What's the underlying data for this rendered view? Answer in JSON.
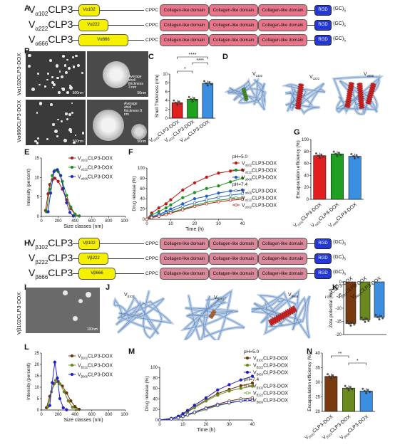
{
  "panels": {
    "A": "A",
    "B": "B",
    "C": "C",
    "D": "D",
    "E": "E",
    "F": "F",
    "G": "G",
    "H": "H",
    "I": "I",
    "J": "J",
    "K": "K",
    "L": "L",
    "M": "M",
    "N": "N"
  },
  "constructs_A": [
    {
      "prefix": "V",
      "sub": "α102",
      "suffix": "CLP3",
      "vlabel": "Vα102"
    },
    {
      "prefix": "V",
      "sub": "α222",
      "suffix": "CLP3",
      "vlabel": "Vα222"
    },
    {
      "prefix": "V",
      "sub": "α666",
      "suffix": "CLP3",
      "vlabel": "Vα666"
    }
  ],
  "constructs_H": [
    {
      "prefix": "V",
      "sub": "β102",
      "suffix": "CLP3",
      "vlabel": "Vβ102"
    },
    {
      "prefix": "V",
      "sub": "β222",
      "suffix": "CLP3",
      "vlabel": "Vβ222"
    },
    {
      "prefix": "V",
      "sub": "β666",
      "suffix": "CLP3",
      "vlabel": "Vβ666"
    }
  ],
  "domain_labels": {
    "cppc": "CPPC",
    "collagen": "Collagen-like domain",
    "rgd": "RGD",
    "gc": "(GC)",
    "gc_sub": "5"
  },
  "micro": {
    "b_top_label": "Vα102CLP3-DOX",
    "b_bottom_label": "Vα666CLP3-DOX",
    "i_label": "Vβ102CLP3-DOX",
    "scale_500": "500nm",
    "scale_50": "50nm",
    "scale_100": "100nm",
    "shell_top": "Average shell thickness 3 nm",
    "shell_bottom": "Average shell thickness 8 nm"
  },
  "structures_D": [
    "Vα102",
    "Vα222",
    "Vα666"
  ],
  "structures_J": [
    "Vβ102",
    "Vβ222",
    "Vβ666"
  ],
  "chart_data": [
    {
      "panel": "C",
      "type": "bar",
      "ylabel": "Shell Thickness (nm)",
      "ylim": [
        0,
        10
      ],
      "yticks": [
        0,
        2,
        4,
        6,
        8,
        10
      ],
      "categories": [
        "Vα102CLP3-DOX",
        "Vα222CLP3-DOX",
        "Vα666CLP3-DOX"
      ],
      "values": [
        3.5,
        4.3,
        7.9
      ],
      "colors": [
        "#e02020",
        "#20a020",
        "#3b8ee0"
      ],
      "significance": [
        {
          "pair": [
            0,
            1
          ],
          "label": "*"
        },
        {
          "pair": [
            1,
            2
          ],
          "label": "****"
        },
        {
          "pair": [
            0,
            2
          ],
          "label": "****"
        }
      ]
    },
    {
      "panel": "E",
      "type": "line",
      "xlabel": "Size classes (nm)",
      "ylabel": "Intensity (percent)",
      "xlim": [
        0,
        1000
      ],
      "ylim": [
        0,
        15
      ],
      "xticks": [
        0,
        200,
        400,
        600,
        800,
        1000
      ],
      "yticks": [
        0,
        5,
        10,
        15
      ],
      "series": [
        {
          "name": "Vα102CLP3-DOX",
          "color": "#b01818",
          "x": [
            50,
            80,
            100,
            130,
            160,
            200,
            250,
            300,
            350,
            400,
            450
          ],
          "y": [
            1.5,
            5.8,
            8.2,
            9.4,
            9.8,
            9.0,
            7.0,
            4.3,
            2.0,
            0.5,
            0.1
          ]
        },
        {
          "name": "Vα222CLP3-DOX",
          "color": "#209020",
          "x": [
            60,
            100,
            130,
            160,
            200,
            250,
            300,
            350,
            400,
            450
          ],
          "y": [
            1.2,
            7.0,
            10.5,
            11.8,
            11.5,
            9.0,
            5.4,
            2.4,
            0.6,
            0.1
          ]
        },
        {
          "name": "Vα666CLP3-DOX",
          "color": "#2030b0",
          "x": [
            80,
            110,
            150,
            190,
            230,
            260,
            300,
            340,
            380
          ],
          "y": [
            1.2,
            6.0,
            11.5,
            12.0,
            10.5,
            7.2,
            3.5,
            1.0,
            0.1
          ]
        }
      ]
    },
    {
      "panel": "F",
      "type": "line",
      "xlabel": "Time (h)",
      "ylabel": "Drug release (%)",
      "xlim": [
        0,
        40
      ],
      "ylim": [
        0,
        100
      ],
      "xticks": [
        0,
        10,
        20,
        30,
        40
      ],
      "yticks": [
        0,
        20,
        40,
        60,
        80,
        100
      ],
      "x": [
        0,
        2,
        5,
        8,
        10,
        15,
        20,
        25,
        30,
        35,
        40
      ],
      "groups": [
        "pH=5.0",
        "pH=7.4"
      ],
      "series": [
        {
          "name": "Vα102CLP3-DOX",
          "group": "pH=5.0",
          "color": "#c01818",
          "filled": true,
          "y": [
            0,
            12,
            22,
            30,
            38,
            57,
            71,
            82,
            90,
            94,
            96
          ]
        },
        {
          "name": "Vα222CLP3-DOX",
          "group": "pH=5.0",
          "color": "#209020",
          "filled": true,
          "y": [
            0,
            8,
            15,
            22,
            28,
            42,
            52,
            60,
            65,
            73,
            80
          ]
        },
        {
          "name": "Vα666CLP3-DOX",
          "group": "pH=5.0",
          "color": "#2060c0",
          "filled": true,
          "y": [
            0,
            5,
            10,
            15,
            20,
            30,
            40,
            45,
            51,
            55,
            57
          ]
        },
        {
          "name": "Vα666CLP3-DOX",
          "group": "pH=7.4",
          "color": "#2060c0",
          "filled": false,
          "y": [
            0,
            4,
            8,
            12,
            16,
            25,
            32,
            38,
            43,
            47,
            50
          ]
        },
        {
          "name": "Vα222CLP3-DOX",
          "group": "pH=7.4",
          "color": "#209020",
          "filled": false,
          "y": [
            0,
            3,
            6,
            10,
            13,
            20,
            27,
            33,
            37,
            40,
            42
          ]
        },
        {
          "name": "Vα102CLP3-DOX",
          "group": "pH=7.4",
          "color": "#c01818",
          "filled": false,
          "y": [
            0,
            3,
            6,
            9,
            12,
            18,
            25,
            30,
            34,
            37,
            39
          ]
        }
      ]
    },
    {
      "panel": "G",
      "type": "bar",
      "ylabel": "Encapsulation efficiency (%)",
      "ylim": [
        0,
        100
      ],
      "yticks": [
        0,
        20,
        40,
        60,
        80,
        100
      ],
      "categories": [
        "Vα102CLP3-DOX",
        "Vα222CLP3-DOX",
        "Vα666CLP3-DOX"
      ],
      "values": [
        73,
        76,
        72
      ],
      "colors": [
        "#e02020",
        "#20a020",
        "#3b8ee0"
      ]
    },
    {
      "panel": "K",
      "type": "bar",
      "ylabel": "Zeta potential (mV)",
      "ylim": [
        -20,
        0
      ],
      "yticks": [
        0,
        -5,
        -10,
        -15,
        -20
      ],
      "categories": [
        "Vβ102CLP3-DOX",
        "Vβ222CLP3-DOX",
        "Vβ666CLP3-DOX"
      ],
      "values": [
        -15.8,
        -14.4,
        -13.4
      ],
      "colors": [
        "#7a3a10",
        "#6a8a20",
        "#3b8ee0"
      ]
    },
    {
      "panel": "L",
      "type": "line",
      "xlabel": "Size classes (nm)",
      "ylabel": "Intensity (percent)",
      "xlim": [
        0,
        1000
      ],
      "ylim": [
        0,
        25
      ],
      "xticks": [
        0,
        200,
        400,
        600,
        800,
        1000
      ],
      "yticks": [
        0,
        5,
        10,
        15,
        20,
        25
      ],
      "series": [
        {
          "name": "Vβ102CLP3-DOX",
          "color": "#6b3410",
          "x": [
            60,
            100,
            150,
            200,
            250,
            300,
            350,
            400,
            450
          ],
          "y": [
            1.0,
            6.0,
            11.5,
            12.5,
            10.5,
            7.5,
            4.0,
            1.5,
            0.3
          ]
        },
        {
          "name": "Vβ222CLP3-DOX",
          "color": "#6a8a20",
          "x": [
            80,
            120,
            170,
            220,
            270,
            320,
            370,
            420
          ],
          "y": [
            1.5,
            8.0,
            13.0,
            11.5,
            8.0,
            4.0,
            1.2,
            0.2
          ]
        },
        {
          "name": "Vβ666CLP3-DOX",
          "color": "#2020d0",
          "x": [
            100,
            130,
            160,
            190,
            220,
            260,
            300
          ],
          "y": [
            2.0,
            12.0,
            21.0,
            14.0,
            5.0,
            1.0,
            0.1
          ]
        }
      ]
    },
    {
      "panel": "M",
      "type": "line",
      "xlabel": "Time (h)",
      "ylabel": "Drug release (%)",
      "xlim": [
        0,
        40
      ],
      "ylim": [
        0,
        100
      ],
      "xticks": [
        0,
        10,
        20,
        30,
        40
      ],
      "yticks": [
        0,
        20,
        40,
        60,
        80,
        100
      ],
      "x": [
        0,
        5,
        8,
        10,
        12,
        15,
        20,
        25,
        30,
        35,
        40
      ],
      "groups": [
        "pH=5.0",
        "pH=7.4"
      ],
      "series": [
        {
          "name": "Vβ102CLP3-DOX",
          "group": "pH=5.0",
          "color": "#6b3410",
          "filled": true,
          "y": [
            0,
            2,
            5,
            10,
            16,
            25,
            38,
            50,
            58,
            65,
            70
          ]
        },
        {
          "name": "Vβ222CLP3-DOX",
          "group": "pH=5.0",
          "color": "#6a8a20",
          "filled": true,
          "y": [
            0,
            2,
            5,
            10,
            15,
            23,
            36,
            47,
            55,
            60,
            64
          ]
        },
        {
          "name": "Vβ666CLP3-DOX",
          "group": "pH=5.0",
          "color": "#2020c0",
          "filled": true,
          "y": [
            0,
            3,
            7,
            12,
            18,
            28,
            42,
            57,
            67,
            76,
            83
          ]
        },
        {
          "name": "Vβ102CLP3-DOX",
          "group": "pH=7.4",
          "color": "#6b3410",
          "filled": false,
          "y": [
            0,
            2,
            4,
            7,
            10,
            15,
            23,
            30,
            36,
            40,
            42
          ]
        },
        {
          "name": "Vβ222CLP3-DOX",
          "group": "pH=7.4",
          "color": "#6a8a20",
          "filled": false,
          "y": [
            0,
            2,
            4,
            6,
            9,
            13,
            20,
            27,
            32,
            36,
            38
          ]
        },
        {
          "name": "Vβ666CLP3-DOX",
          "group": "pH=7.4",
          "color": "#2020c0",
          "filled": false,
          "y": [
            0,
            2,
            4,
            7,
            10,
            15,
            22,
            28,
            33,
            36,
            37
          ]
        }
      ]
    },
    {
      "panel": "N",
      "type": "bar",
      "ylabel": "Encapsulation efficiency (%)",
      "ylim": [
        20,
        40
      ],
      "yticks": [
        20,
        25,
        30,
        35,
        40
      ],
      "categories": [
        "Vβ102CLP3-DOX",
        "Vβ222CLP3-DOX",
        "Vβ666CLP3-DOX"
      ],
      "values": [
        32,
        28,
        27
      ],
      "colors": [
        "#7a3a10",
        "#6a8a20",
        "#3b8ee0"
      ],
      "significance": [
        {
          "pair": [
            0,
            1
          ],
          "label": "**"
        },
        {
          "pair": [
            1,
            2
          ],
          "label": "*"
        }
      ]
    }
  ]
}
